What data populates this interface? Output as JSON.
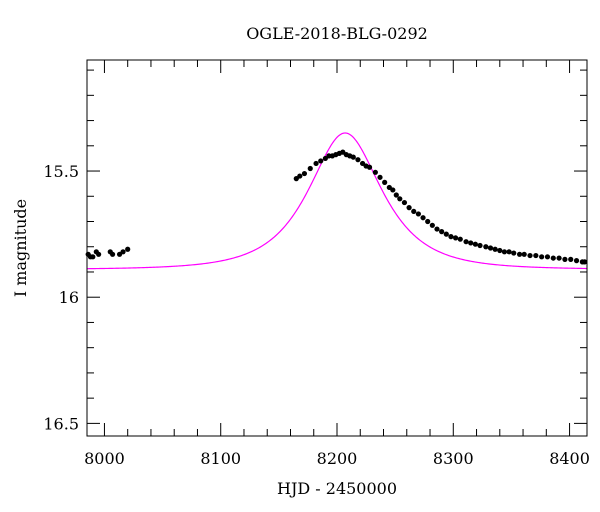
{
  "chart_data": {
    "type": "scatter",
    "title": "OGLE-2018-BLG-0292",
    "xlabel": "HJD - 2450000",
    "ylabel": "I magnitude",
    "xlim": [
      7985,
      8415
    ],
    "ylim": [
      16.55,
      15.06
    ],
    "y_inverted": true,
    "xticks": [
      8000,
      8100,
      8200,
      8300,
      8400
    ],
    "xtick_labels": [
      "8000",
      "8100",
      "8200",
      "8300",
      "8400"
    ],
    "yticks": [
      15.5,
      16,
      16.5
    ],
    "ytick_labels": [
      "15.5",
      "16",
      "16.5"
    ],
    "grid": false,
    "colors": {
      "data": "#000000",
      "model": "#ff00ff",
      "frame": "#000000"
    },
    "series": [
      {
        "kind": "points",
        "points": [
          [
            7986,
            15.83
          ],
          [
            7988,
            15.84
          ],
          [
            7990,
            15.84
          ],
          [
            7993,
            15.82
          ],
          [
            7995,
            15.83
          ],
          [
            8005,
            15.82
          ],
          [
            8007,
            15.83
          ],
          [
            8013,
            15.83
          ],
          [
            8016,
            15.82
          ],
          [
            8020,
            15.81
          ],
          [
            8165,
            15.53
          ],
          [
            8168,
            15.52
          ],
          [
            8172,
            15.51
          ],
          [
            8177,
            15.49
          ],
          [
            8182,
            15.47
          ],
          [
            8186,
            15.46
          ],
          [
            8190,
            15.45
          ],
          [
            8193,
            15.44
          ],
          [
            8196,
            15.44
          ],
          [
            8199,
            15.435
          ],
          [
            8202,
            15.43
          ],
          [
            8205,
            15.425
          ],
          [
            8208,
            15.435
          ],
          [
            8211,
            15.44
          ],
          [
            8214,
            15.445
          ],
          [
            8218,
            15.455
          ],
          [
            8222,
            15.47
          ],
          [
            8225,
            15.48
          ],
          [
            8228,
            15.485
          ],
          [
            8233,
            15.505
          ],
          [
            8237,
            15.525
          ],
          [
            8241,
            15.545
          ],
          [
            8245,
            15.565
          ],
          [
            8248,
            15.575
          ],
          [
            8251,
            15.595
          ],
          [
            8254,
            15.61
          ],
          [
            8258,
            15.625
          ],
          [
            8262,
            15.645
          ],
          [
            8266,
            15.66
          ],
          [
            8270,
            15.67
          ],
          [
            8274,
            15.685
          ],
          [
            8278,
            15.7
          ],
          [
            8282,
            15.715
          ],
          [
            8286,
            15.73
          ],
          [
            8290,
            15.74
          ],
          [
            8294,
            15.75
          ],
          [
            8298,
            15.76
          ],
          [
            8302,
            15.765
          ],
          [
            8306,
            15.77
          ],
          [
            8311,
            15.78
          ],
          [
            8315,
            15.785
          ],
          [
            8319,
            15.79
          ],
          [
            8323,
            15.795
          ],
          [
            8328,
            15.8
          ],
          [
            8332,
            15.805
          ],
          [
            8336,
            15.81
          ],
          [
            8340,
            15.815
          ],
          [
            8344,
            15.82
          ],
          [
            8348,
            15.82
          ],
          [
            8352,
            15.825
          ],
          [
            8357,
            15.83
          ],
          [
            8361,
            15.83
          ],
          [
            8366,
            15.835
          ],
          [
            8371,
            15.835
          ],
          [
            8376,
            15.84
          ],
          [
            8381,
            15.84
          ],
          [
            8386,
            15.845
          ],
          [
            8391,
            15.845
          ],
          [
            8396,
            15.85
          ],
          [
            8401,
            15.85
          ],
          [
            8406,
            15.855
          ],
          [
            8411,
            15.86
          ],
          [
            8413,
            15.86
          ]
        ]
      },
      {
        "kind": "model",
        "t0": 8207,
        "u0": 0.72,
        "tE": 45,
        "baseline_mag": 15.89,
        "color": "#ff00ff"
      }
    ]
  }
}
